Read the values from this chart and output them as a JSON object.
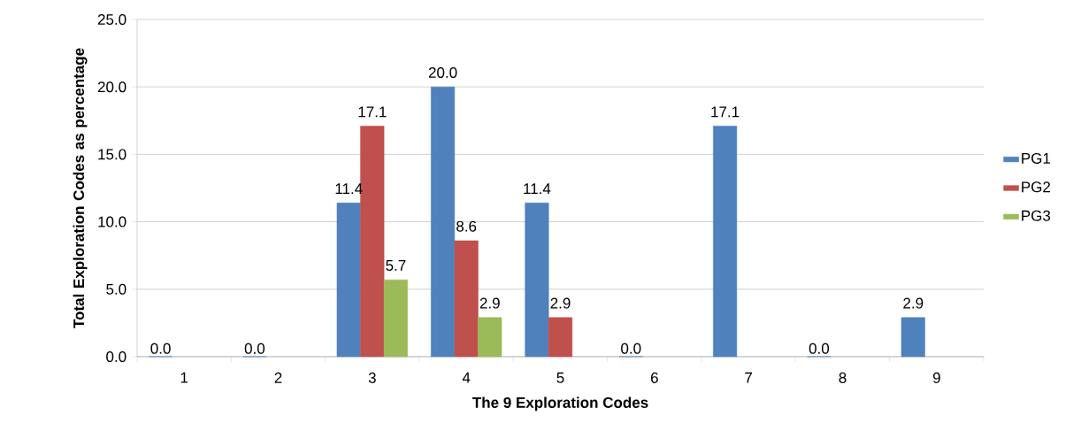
{
  "chart_data": {
    "type": "bar",
    "xlabel": "The 9 Exploration Codes",
    "ylabel": "Total Exploration Codes as percentage",
    "categories": [
      "1",
      "2",
      "3",
      "4",
      "5",
      "6",
      "7",
      "8",
      "9"
    ],
    "series": [
      {
        "name": "PG1",
        "color": "#4f81bd",
        "values": [
          0,
          0,
          11.4,
          20.0,
          11.4,
          0,
          17.1,
          0,
          2.9
        ],
        "value_labels": [
          "0.0",
          "0.0",
          "11.4",
          "20.0",
          "11.4",
          "0.0",
          "17.1",
          "0.0",
          "2.9"
        ]
      },
      {
        "name": "PG2",
        "color": "#c0504d",
        "values": [
          null,
          null,
          17.1,
          8.6,
          2.9,
          null,
          null,
          null,
          null
        ],
        "value_labels": [
          null,
          null,
          "17.1",
          "8.6",
          "2.9",
          null,
          null,
          null,
          null
        ]
      },
      {
        "name": "PG3",
        "color": "#9bbb59",
        "values": [
          null,
          null,
          5.7,
          2.9,
          null,
          null,
          null,
          null,
          null
        ],
        "value_labels": [
          null,
          null,
          "5.7",
          "2.9",
          null,
          null,
          null,
          null,
          null
        ]
      }
    ],
    "ylim": [
      0,
      25
    ],
    "yticks": [
      {
        "value": 0,
        "label": "0.0"
      },
      {
        "value": 5,
        "label": "5.0"
      },
      {
        "value": 10,
        "label": "10.0"
      },
      {
        "value": 15,
        "label": "15.0"
      },
      {
        "value": 20,
        "label": "20.0"
      },
      {
        "value": 25,
        "label": "25.0"
      }
    ],
    "grid": "y",
    "legend": "right"
  }
}
